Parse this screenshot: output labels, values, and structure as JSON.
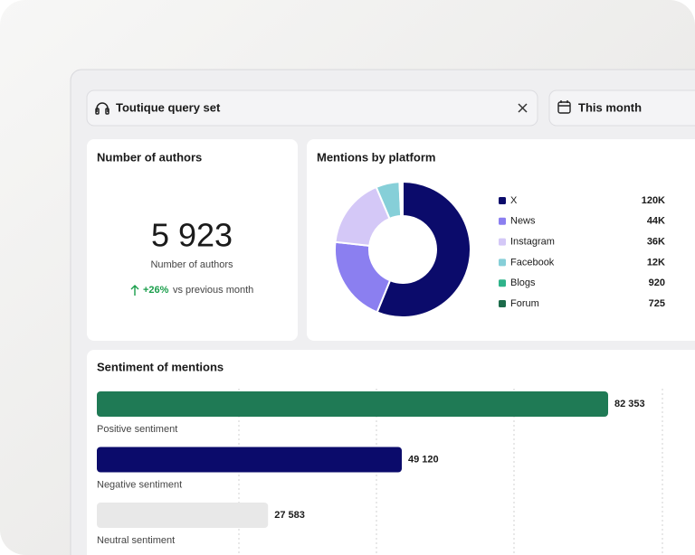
{
  "filters": {
    "query": "Toutique query set",
    "period": "This month"
  },
  "authors": {
    "title": "Number of authors",
    "value": "5 923",
    "label": "Number of authors",
    "change": "+26%",
    "change_text": "vs previous month"
  },
  "platforms": {
    "title": "Mentions by platform",
    "type": "donut",
    "categories": [
      "X",
      "News",
      "Instagram",
      "Facebook",
      "Blogs",
      "Forum"
    ],
    "values": [
      120000,
      44000,
      36000,
      12000,
      920,
      725
    ],
    "value_labels": [
      "120K",
      "44K",
      "36K",
      "12K",
      "920",
      "725"
    ],
    "colors": [
      "#0b0b6b",
      "#8b7ff0",
      "#d4c8f7",
      "#86cfd8",
      "#2fb38a",
      "#1c6b4a"
    ]
  },
  "sentiment": {
    "title": "Sentiment of mentions",
    "type": "bar",
    "categories": [
      "Positive sentiment",
      "Negative sentiment",
      "Neutral sentiment"
    ],
    "values": [
      82353,
      49120,
      27583
    ],
    "value_labels": [
      "82 353",
      "49 120",
      "27 583"
    ],
    "colors": [
      "#1f7a55",
      "#0b0b6b",
      "#e8e8e8"
    ]
  }
}
